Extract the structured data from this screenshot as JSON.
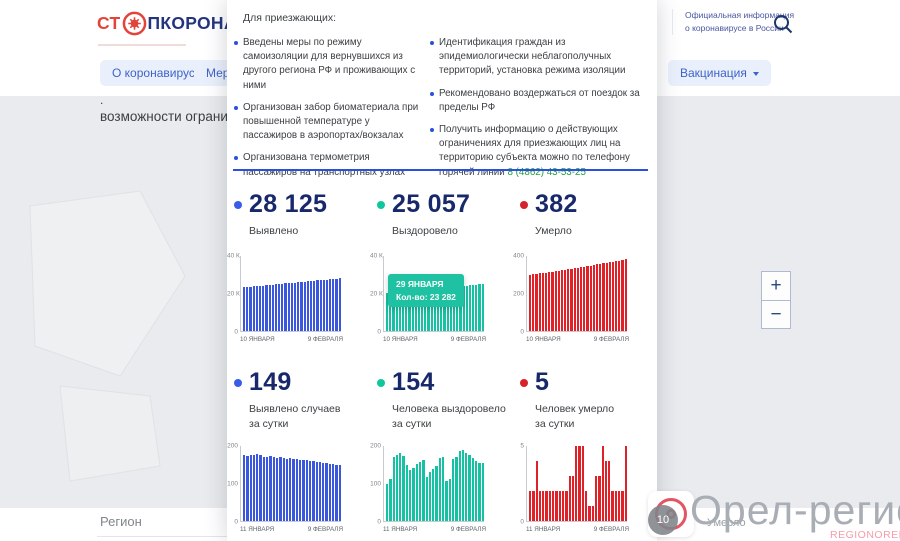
{
  "header": {
    "logo_prefix": "СТ",
    "logo_suffix": "ПКОРОНАВИРУС",
    "tagline_line1": "Официальная информация",
    "tagline_line2": "о коронавирусе в России"
  },
  "nav": {
    "tab1": "О коронавирусе",
    "tab2": "Меры",
    "tab3": "Вакцинация"
  },
  "background_page": {
    "fragment_dot": ".",
    "fragment_text": "возможности огранич",
    "region_label": "Регион",
    "umerlo_label": "Умерло"
  },
  "map_controls": {
    "zoom_in": "+",
    "zoom_out": "−"
  },
  "popup": {
    "title": "Для приезжающих:",
    "left_bullets": [
      "Введены меры по режиму самоизоляции для вернувшихся из другого региона РФ и проживающих с ними",
      "Организован забор биоматериала при повышенной температуре у пассажиров в аэропортах/вокзалах",
      "Организована термометрия пассажиров на транспортных узлах"
    ],
    "right_bullets": [
      "Идентификация граждан из эпидемиологически неблагополучных территорий, установка режима изоляции",
      "Рекомендовано воздержаться от поездок за пределы РФ",
      {
        "text": "Получить информацию о действующих ограничениях для приезжающих лиц на территорию субъекта можно по телефону горячей линии",
        "phone": "8 (4862) 43-53-25"
      }
    ],
    "stats_total": [
      {
        "value": "28 125",
        "label": "Выявлено",
        "color": "#3a5de8"
      },
      {
        "value": "25 057",
        "label": "Выздоровело",
        "color": "#10c79b"
      },
      {
        "value": "382",
        "label": "Умерло",
        "color": "#d6222b"
      }
    ],
    "stats_daily": [
      {
        "value": "149",
        "label": "Выявлено случаев",
        "label2": "за сутки",
        "color": "#3a5de8"
      },
      {
        "value": "154",
        "label": "Человека выздоровело",
        "label2": "за сутки",
        "color": "#10c79b"
      },
      {
        "value": "5",
        "label": "Человек умерло",
        "label2": "за сутки",
        "color": "#d6222b"
      }
    ],
    "tooltip": {
      "date": "29 ЯНВАРЯ",
      "value": "Кол-во: 23 282"
    }
  },
  "watermark": {
    "title": "Орел-регион",
    "subtitle": "REGIONOREL.RU",
    "badge": "10"
  },
  "chart_data": [
    {
      "type": "bar",
      "title": "Выявлено (всего)",
      "color": "#3a57dd",
      "ymax": 40000,
      "yticks": [
        "40 К",
        "20 К",
        "0"
      ],
      "x_start": "10 ЯНВАРЯ",
      "x_end": "9 ФЕВРАЛЯ",
      "values": [
        23300,
        23460,
        23620,
        23780,
        23940,
        24100,
        24260,
        24420,
        24580,
        24740,
        24900,
        25060,
        25220,
        25380,
        25540,
        25700,
        25860,
        26020,
        26180,
        26340,
        26500,
        26660,
        26820,
        26980,
        27140,
        27300,
        27460,
        27620,
        27780,
        27960,
        28125
      ]
    },
    {
      "type": "bar",
      "title": "Выздоровело (всего)",
      "color": "#16c2a3",
      "ymax": 40000,
      "yticks": [
        "40 К",
        "20 К",
        "0"
      ],
      "x_start": "10 ЯНВАРЯ",
      "x_end": "9 ФЕВРАЛЯ",
      "tooltip": {
        "date": "29 ЯНВАРЯ",
        "value": "Кол-во: 23 282"
      },
      "values": [
        20400,
        20550,
        20700,
        20850,
        21000,
        21150,
        21300,
        21450,
        21600,
        21750,
        21900,
        22050,
        22200,
        22350,
        22500,
        22650,
        22800,
        22950,
        23100,
        23282,
        23440,
        23600,
        23760,
        23920,
        24080,
        24240,
        24400,
        24560,
        24720,
        24890,
        25057
      ]
    },
    {
      "type": "bar",
      "title": "Умерло (всего)",
      "color": "#e02128",
      "ymax": 400,
      "yticks": [
        "400",
        "200",
        "0"
      ],
      "x_start": "10 ЯНВАРЯ",
      "x_end": "9 ФЕВРАЛЯ",
      "values": [
        300,
        302,
        305,
        307,
        310,
        312,
        315,
        317,
        320,
        322,
        325,
        327,
        330,
        332,
        335,
        338,
        340,
        343,
        346,
        349,
        352,
        355,
        358,
        361,
        364,
        367,
        370,
        373,
        376,
        379,
        382
      ]
    },
    {
      "type": "bar",
      "title": "Выявлено случаев за сутки",
      "color": "#3a57dd",
      "ymax": 200,
      "yticks": [
        "200",
        "100",
        "0"
      ],
      "x_start": "11 ЯНВАРЯ",
      "x_end": "9 ФЕВРАЛЯ",
      "values": [
        176,
        173,
        177,
        175,
        178,
        176,
        172,
        170,
        173,
        171,
        169,
        170,
        168,
        166,
        167,
        165,
        166,
        163,
        164,
        162,
        160,
        161,
        158,
        157,
        155,
        154,
        152,
        153,
        150,
        149
      ]
    },
    {
      "type": "bar",
      "title": "Человека выздоровело за сутки",
      "color": "#16c2a3",
      "ymax": 200,
      "yticks": [
        "200",
        "100",
        "0"
      ],
      "x_start": "11 ЯНВАРЯ",
      "x_end": "9 ФЕВРАЛЯ",
      "values": [
        100,
        112,
        170,
        176,
        182,
        174,
        150,
        136,
        142,
        152,
        158,
        162,
        118,
        132,
        140,
        146,
        168,
        172,
        108,
        112,
        166,
        172,
        186,
        190,
        182,
        176,
        168,
        160,
        156,
        154
      ]
    },
    {
      "type": "bar",
      "title": "Человек умерло за сутки",
      "color": "#e02128",
      "ymax": 5,
      "yticks": [
        "5",
        "0"
      ],
      "x_start": "11 ЯНВАРЯ",
      "x_end": "9 ФЕВРАЛЯ",
      "values": [
        2,
        2,
        4,
        2,
        2,
        2,
        2,
        2,
        2,
        2,
        2,
        2,
        3,
        3,
        5,
        5,
        5,
        2,
        1,
        1,
        3,
        3,
        5,
        4,
        4,
        2,
        2,
        2,
        2,
        5
      ]
    }
  ]
}
